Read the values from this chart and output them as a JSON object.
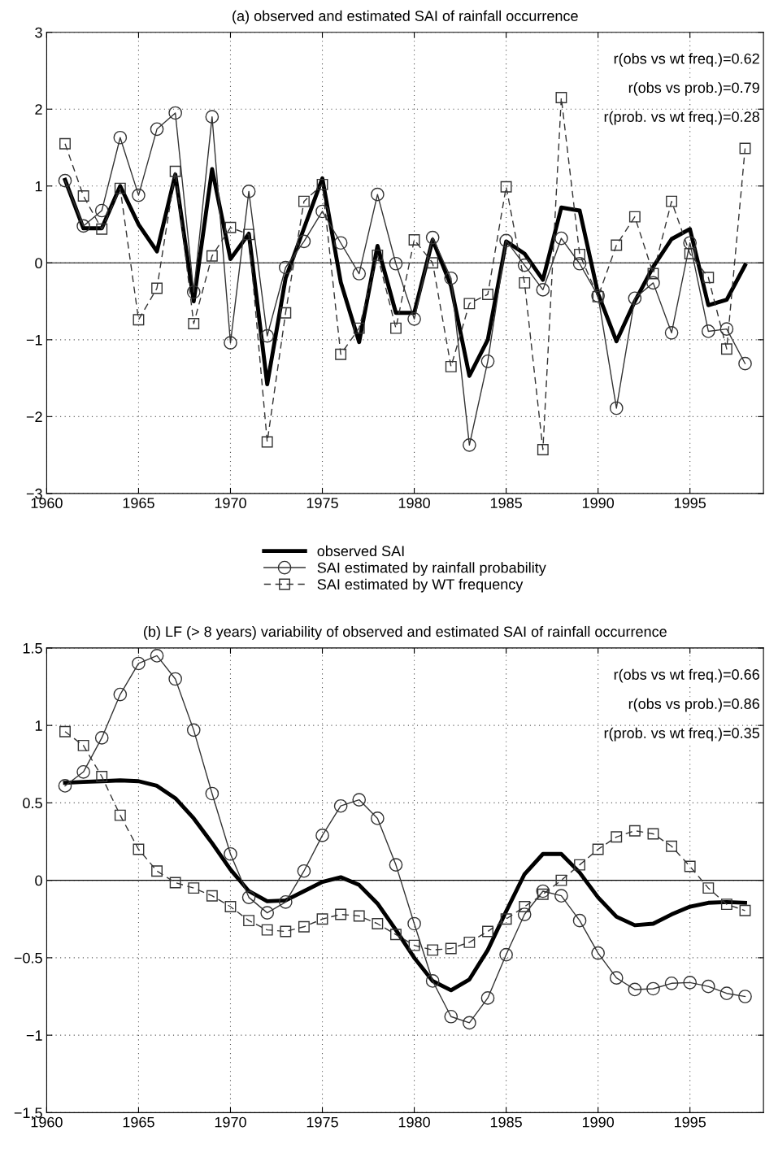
{
  "chart_data": [
    {
      "type": "line",
      "title": "(a) observed and estimated SAI of rainfall occurrence",
      "x": [
        1961,
        1962,
        1963,
        1964,
        1965,
        1966,
        1967,
        1968,
        1969,
        1970,
        1971,
        1972,
        1973,
        1974,
        1975,
        1976,
        1977,
        1978,
        1979,
        1980,
        1981,
        1982,
        1983,
        1984,
        1985,
        1986,
        1987,
        1988,
        1989,
        1990,
        1991,
        1992,
        1993,
        1994,
        1995,
        1996,
        1997,
        1998
      ],
      "series": [
        {
          "name": "observed SAI",
          "color": "#000000",
          "marker": "none",
          "line_style": "solid",
          "values": [
            1.08,
            0.45,
            0.45,
            1.0,
            0.5,
            0.15,
            1.15,
            -0.5,
            1.22,
            0.05,
            0.38,
            -1.58,
            -0.2,
            0.45,
            1.1,
            -0.25,
            -1.03,
            0.22,
            -0.65,
            -0.65,
            0.3,
            -0.3,
            -1.47,
            -1.0,
            0.28,
            0.12,
            -0.22,
            0.72,
            0.68,
            -0.4,
            -1.02,
            -0.5,
            -0.05,
            0.31,
            0.44,
            -0.55,
            -0.48,
            -0.03
          ]
        },
        {
          "name": "SAI estimated by rainfall probability",
          "color": "#333333",
          "marker": "circle",
          "line_style": "solid",
          "values": [
            1.07,
            0.48,
            0.68,
            1.63,
            0.88,
            1.74,
            1.95,
            -0.38,
            1.9,
            -1.04,
            0.93,
            -0.95,
            -0.06,
            0.28,
            0.67,
            0.26,
            -0.14,
            0.89,
            -0.01,
            -0.73,
            0.33,
            -0.2,
            -2.37,
            -1.28,
            0.29,
            -0.03,
            -0.35,
            0.32,
            -0.01,
            -0.43,
            -1.89,
            -0.46,
            -0.26,
            -0.91,
            0.26,
            -0.89,
            -0.86,
            -1.31
          ]
        },
        {
          "name": "SAI estimated by WT frequency",
          "color": "#333333",
          "marker": "square",
          "line_style": "dashed",
          "values": [
            1.55,
            0.87,
            0.44,
            0.97,
            -0.74,
            -0.33,
            1.19,
            -0.79,
            0.09,
            0.46,
            0.37,
            -2.33,
            -0.65,
            0.8,
            1.02,
            -1.19,
            -0.85,
            0.1,
            -0.85,
            0.3,
            0.0,
            -1.35,
            -0.53,
            -0.41,
            0.99,
            -0.26,
            -2.43,
            2.15,
            0.11,
            -0.44,
            0.23,
            0.6,
            -0.14,
            0.8,
            0.12,
            -0.19,
            -1.12,
            1.49
          ]
        }
      ],
      "xlim": [
        1960,
        1999
      ],
      "xticks": [
        1960,
        1965,
        1970,
        1975,
        1980,
        1985,
        1990,
        1995
      ],
      "ylim": [
        -3,
        3
      ],
      "yticks": [
        -3,
        -2,
        -1,
        0,
        1,
        2,
        3
      ],
      "ref_lines": [
        {
          "axis": "y",
          "value": 0,
          "color": "#000000"
        }
      ],
      "annotations": [
        "r(obs vs wt freq.)=0.62",
        "r(obs vs prob.)=0.79",
        "r(prob. vs wt freq.)=0.28"
      ],
      "grid": true,
      "legend": "bottom"
    },
    {
      "type": "line",
      "title": "(b) LF (> 8 years) variability of observed and estimated SAI of rainfall occurrence",
      "x": [
        1961,
        1962,
        1963,
        1964,
        1965,
        1966,
        1967,
        1968,
        1969,
        1970,
        1971,
        1972,
        1973,
        1974,
        1975,
        1976,
        1977,
        1978,
        1979,
        1980,
        1981,
        1982,
        1983,
        1984,
        1985,
        1986,
        1987,
        1988,
        1989,
        1990,
        1991,
        1992,
        1993,
        1994,
        1995,
        1996,
        1997,
        1998
      ],
      "series": [
        {
          "color": "#000000",
          "marker": "none",
          "line_style": "solid",
          "values": [
            0.63,
            0.635,
            0.64,
            0.645,
            0.64,
            0.61,
            0.53,
            0.4,
            0.24,
            0.07,
            -0.07,
            -0.135,
            -0.13,
            -0.07,
            -0.01,
            0.02,
            -0.03,
            -0.15,
            -0.32,
            -0.5,
            -0.65,
            -0.71,
            -0.64,
            -0.45,
            -0.2,
            0.04,
            0.17,
            0.17,
            0.05,
            -0.11,
            -0.235,
            -0.29,
            -0.28,
            -0.22,
            -0.17,
            -0.145,
            -0.14,
            -0.145
          ]
        },
        {
          "color": "#333333",
          "marker": "circle",
          "line_style": "solid",
          "values": [
            0.61,
            0.7,
            0.92,
            1.2,
            1.4,
            1.45,
            1.3,
            0.97,
            0.56,
            0.17,
            -0.11,
            -0.21,
            -0.14,
            0.06,
            0.29,
            0.48,
            0.52,
            0.4,
            0.1,
            -0.28,
            -0.65,
            -0.88,
            -0.92,
            -0.76,
            -0.48,
            -0.22,
            -0.07,
            -0.1,
            -0.26,
            -0.47,
            -0.63,
            -0.705,
            -0.7,
            -0.665,
            -0.66,
            -0.685,
            -0.73,
            -0.75
          ]
        },
        {
          "color": "#333333",
          "marker": "square",
          "line_style": "dashed",
          "values": [
            0.96,
            0.87,
            0.67,
            0.42,
            0.2,
            0.06,
            -0.015,
            -0.05,
            -0.1,
            -0.17,
            -0.26,
            -0.32,
            -0.33,
            -0.3,
            -0.25,
            -0.22,
            -0.23,
            -0.28,
            -0.35,
            -0.42,
            -0.45,
            -0.44,
            -0.4,
            -0.33,
            -0.25,
            -0.17,
            -0.09,
            0.0,
            0.1,
            0.2,
            0.28,
            0.32,
            0.3,
            0.22,
            0.09,
            -0.05,
            -0.155,
            -0.195
          ]
        }
      ],
      "xlim": [
        1960,
        1999
      ],
      "xticks": [
        1960,
        1965,
        1970,
        1975,
        1980,
        1985,
        1990,
        1995
      ],
      "ylim": [
        -1.5,
        1.5
      ],
      "yticks": [
        -1.5,
        -1,
        -0.5,
        0,
        0.5,
        1,
        1.5
      ],
      "ref_lines": [
        {
          "axis": "y",
          "value": 0,
          "color": "#000000"
        }
      ],
      "annotations": [
        "r(obs vs wt freq.)=0.66",
        "r(obs vs prob.)=0.86",
        "r(prob. vs wt freq.)=0.35"
      ],
      "grid": true
    }
  ]
}
